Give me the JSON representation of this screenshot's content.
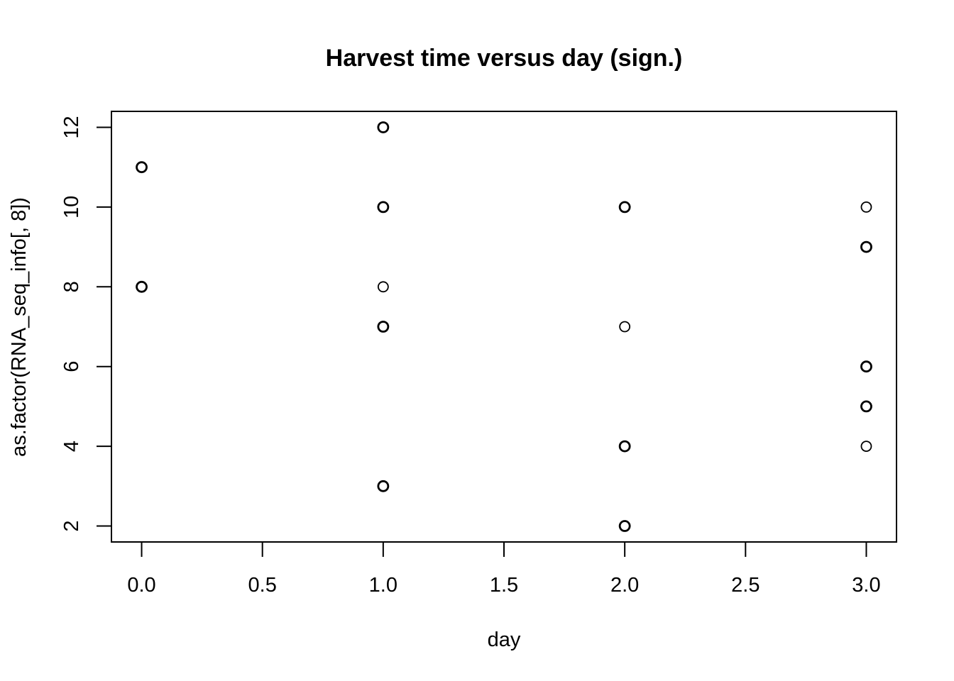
{
  "chart_data": {
    "type": "scatter",
    "title": "Harvest time versus day (sign.)",
    "xlabel": "day",
    "ylabel": "as.factor(RNA_seq_info[, 8])",
    "xlim": [
      -0.125,
      3.125
    ],
    "ylim": [
      1.6,
      12.4
    ],
    "x_ticks": [
      0.0,
      0.5,
      1.0,
      1.5,
      2.0,
      2.5,
      3.0
    ],
    "x_tick_labels": [
      "0.0",
      "0.5",
      "1.0",
      "1.5",
      "2.0",
      "2.5",
      "3.0"
    ],
    "y_ticks": [
      2,
      4,
      6,
      8,
      10,
      12
    ],
    "y_tick_labels": [
      "2",
      "4",
      "6",
      "8",
      "10",
      "12"
    ],
    "grid": false,
    "legend": "none",
    "marker": "open-circle",
    "colors": {
      "points": "#000000",
      "axes": "#000000",
      "background": "#ffffff"
    },
    "points": [
      {
        "x": 0,
        "y": 11,
        "count": 2
      },
      {
        "x": 0,
        "y": 8,
        "count": 2
      },
      {
        "x": 1,
        "y": 12,
        "count": 2
      },
      {
        "x": 1,
        "y": 10,
        "count": 2
      },
      {
        "x": 1,
        "y": 8,
        "count": 1
      },
      {
        "x": 1,
        "y": 7,
        "count": 2
      },
      {
        "x": 1,
        "y": 3,
        "count": 2
      },
      {
        "x": 2,
        "y": 10,
        "count": 2
      },
      {
        "x": 2,
        "y": 7,
        "count": 1
      },
      {
        "x": 2,
        "y": 4,
        "count": 2
      },
      {
        "x": 2,
        "y": 2,
        "count": 2
      },
      {
        "x": 3,
        "y": 10,
        "count": 1
      },
      {
        "x": 3,
        "y": 9,
        "count": 2
      },
      {
        "x": 3,
        "y": 6,
        "count": 2
      },
      {
        "x": 3,
        "y": 5,
        "count": 2
      },
      {
        "x": 3,
        "y": 4,
        "count": 1
      }
    ]
  }
}
